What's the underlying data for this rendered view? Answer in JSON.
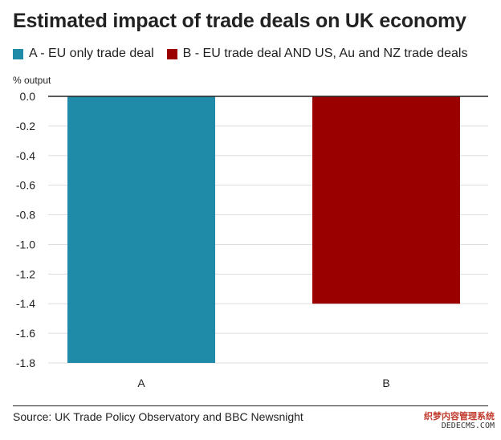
{
  "title": "Estimated impact of trade deals on UK economy",
  "source": "Source: UK Trade Policy Observatory and BBC Newsnight",
  "watermark": {
    "line1": "织梦内容管理系统",
    "line2": "DEDECMS.COM"
  },
  "colors": {
    "A": "#1f8ba8",
    "B": "#9b0000",
    "axis": "#222222",
    "grid": "#dddddd",
    "text": "#222222"
  },
  "chart_data": {
    "type": "bar",
    "title": "Estimated impact of trade deals on UK economy",
    "ylabel": "% output",
    "xlabel": "",
    "categories": [
      "A",
      "B"
    ],
    "series": [
      {
        "name": "A - EU only trade deal",
        "category": "A",
        "value": -1.8,
        "color": "#1f8ba8"
      },
      {
        "name": "B - EU trade deal AND US, Au and NZ trade deals",
        "category": "B",
        "value": -1.4,
        "color": "#9b0000"
      }
    ],
    "values": [
      -1.8,
      -1.4
    ],
    "ylim": [
      -1.8,
      0.0
    ],
    "yticks": [
      "0.0",
      "-0.2",
      "-0.4",
      "-0.6",
      "-0.8",
      "-1.0",
      "-1.2",
      "-1.4",
      "-1.6",
      "-1.8"
    ],
    "grid": true,
    "legend_position": "top-left"
  }
}
